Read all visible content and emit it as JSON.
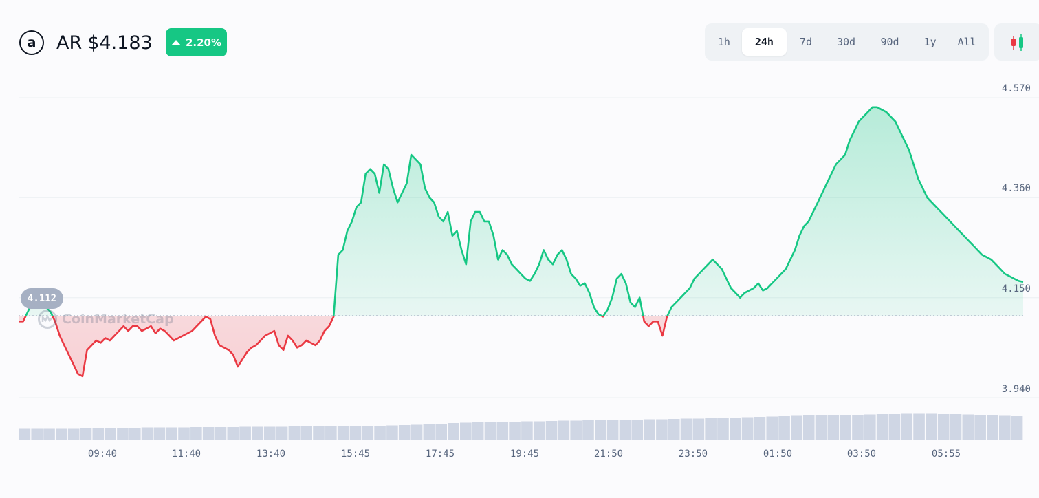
{
  "header": {
    "symbol": "AR",
    "price": "$4.183",
    "logo_letter": "a",
    "change_pct": "2.20%",
    "change_direction": "up"
  },
  "time_ranges": [
    "1h",
    "24h",
    "7d",
    "30d",
    "90d",
    "1y",
    "All"
  ],
  "active_range": "24h",
  "colors": {
    "up": "#16c784",
    "down": "#ea3943",
    "badge": "#16c784",
    "grid": "#eff2f5",
    "volume": "#cfd6e4"
  },
  "icons": {
    "logo": "arweave-logo-icon",
    "chart_type": "candlestick-icon",
    "badge_arrow": "triangle-up-icon"
  },
  "watermark": "CoinMarketCap",
  "chart_data": {
    "type": "area",
    "title": "",
    "reference_value": 4.112,
    "reference_label": "4.112",
    "ylim": [
      3.94,
      4.57
    ],
    "y_ticks": [
      "4.570",
      "4.360",
      "4.150",
      "3.940"
    ],
    "x_ticks": [
      "09:40",
      "11:40",
      "13:40",
      "15:45",
      "17:45",
      "19:45",
      "21:50",
      "23:50",
      "01:50",
      "03:50",
      "05:55"
    ],
    "grid": true,
    "series": [
      {
        "values": [
          4.1,
          4.1,
          4.12,
          4.14,
          4.15,
          4.15,
          4.13,
          4.12,
          4.1,
          4.07,
          4.05,
          4.03,
          4.01,
          3.99,
          3.985,
          4.04,
          4.05,
          4.06,
          4.055,
          4.065,
          4.06,
          4.07,
          4.08,
          4.09,
          4.08,
          4.09,
          4.09,
          4.08,
          4.085,
          4.09,
          4.075,
          4.085,
          4.08,
          4.07,
          4.06,
          4.065,
          4.07,
          4.075,
          4.08,
          4.09,
          4.1,
          4.11,
          4.105,
          4.07,
          4.05,
          4.045,
          4.04,
          4.03,
          4.005,
          4.02,
          4.035,
          4.045,
          4.05,
          4.06,
          4.07,
          4.075,
          4.08,
          4.05,
          4.04,
          4.07,
          4.06,
          4.045,
          4.05,
          4.06,
          4.055,
          4.05,
          4.06,
          4.08,
          4.09,
          4.11,
          4.24,
          4.25,
          4.29,
          4.31,
          4.34,
          4.35,
          4.41,
          4.42,
          4.41,
          4.37,
          4.43,
          4.42,
          4.38,
          4.35,
          4.37,
          4.39,
          4.45,
          4.44,
          4.43,
          4.38,
          4.36,
          4.35,
          4.32,
          4.31,
          4.33,
          4.28,
          4.29,
          4.25,
          4.22,
          4.31,
          4.33,
          4.33,
          4.31,
          4.31,
          4.28,
          4.23,
          4.25,
          4.24,
          4.22,
          4.21,
          4.2,
          4.19,
          4.185,
          4.2,
          4.22,
          4.25,
          4.23,
          4.22,
          4.24,
          4.25,
          4.23,
          4.2,
          4.19,
          4.175,
          4.18,
          4.16,
          4.13,
          4.115,
          4.11,
          4.125,
          4.15,
          4.19,
          4.2,
          4.18,
          4.14,
          4.13,
          4.15,
          4.1,
          4.09,
          4.1,
          4.1,
          4.07,
          4.11,
          4.13,
          4.14,
          4.15,
          4.16,
          4.17,
          4.19,
          4.2,
          4.21,
          4.22,
          4.23,
          4.22,
          4.21,
          4.19,
          4.17,
          4.16,
          4.15,
          4.16,
          4.165,
          4.17,
          4.18,
          4.165,
          4.17,
          4.18,
          4.19,
          4.2,
          4.21,
          4.23,
          4.25,
          4.28,
          4.3,
          4.31,
          4.33,
          4.35,
          4.37,
          4.39,
          4.41,
          4.43,
          4.44,
          4.45,
          4.48,
          4.5,
          4.52,
          4.53,
          4.54,
          4.55,
          4.55,
          4.545,
          4.54,
          4.53,
          4.52,
          4.5,
          4.48,
          4.46,
          4.43,
          4.4,
          4.38,
          4.36,
          4.35,
          4.34,
          4.33,
          4.32,
          4.31,
          4.3,
          4.29,
          4.28,
          4.27,
          4.26,
          4.25,
          4.24,
          4.235,
          4.23,
          4.22,
          4.21,
          4.2,
          4.195,
          4.19,
          4.185,
          4.183
        ]
      }
    ],
    "volume": [
      0.35,
      0.35,
      0.35,
      0.35,
      0.35,
      0.36,
      0.36,
      0.36,
      0.36,
      0.36,
      0.37,
      0.37,
      0.37,
      0.37,
      0.38,
      0.38,
      0.38,
      0.38,
      0.39,
      0.39,
      0.39,
      0.39,
      0.4,
      0.4,
      0.4,
      0.4,
      0.41,
      0.41,
      0.42,
      0.42,
      0.43,
      0.44,
      0.45,
      0.47,
      0.48,
      0.5,
      0.51,
      0.52,
      0.52,
      0.53,
      0.54,
      0.55,
      0.55,
      0.56,
      0.57,
      0.57,
      0.58,
      0.58,
      0.59,
      0.6,
      0.6,
      0.61,
      0.61,
      0.62,
      0.63,
      0.63,
      0.64,
      0.65,
      0.66,
      0.67,
      0.68,
      0.69,
      0.7,
      0.71,
      0.72,
      0.72,
      0.73,
      0.74,
      0.74,
      0.75,
      0.76,
      0.76,
      0.77,
      0.77,
      0.77,
      0.76,
      0.76,
      0.75,
      0.74,
      0.72,
      0.71,
      0.7
    ]
  }
}
